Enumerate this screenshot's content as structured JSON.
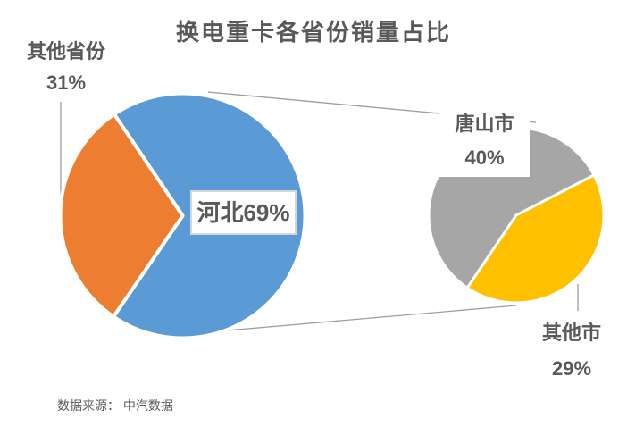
{
  "title": "换电重卡各省份销量占比",
  "source": "数据来源： 中汽数据",
  "colors": {
    "hebei_blue": "#5B9BD5",
    "other_provinces_orange": "#ED7D31",
    "tangshan_gray": "#A6A6A6",
    "other_cities_yellow": "#FFC000",
    "label_text": "#595959",
    "connector_line": "#9E9E9E",
    "callout_border": "#D6D6D6"
  },
  "labels": {
    "other_provinces_name": "其他省份",
    "other_provinces_pct": "31%",
    "hebei_callout": "河北69%",
    "tangshan_name": "唐山市",
    "tangshan_pct": "40%",
    "other_cities_name": "其他市",
    "other_cities_pct": "29%"
  },
  "chart_data": {
    "type": "pie",
    "subtype": "pie-of-pie",
    "title": "换电重卡各省份销量占比",
    "source": "数据来源： 中汽数据",
    "legend": "none",
    "main_pie": {
      "start_angle_clock_deg": 326,
      "slices": [
        {
          "id": "hebei",
          "label": "河北",
          "value": 69,
          "unit": "%",
          "color": "#5B9BD5"
        },
        {
          "id": "other-provinces",
          "label": "其他省份",
          "value": 31,
          "unit": "%",
          "color": "#ED7D31"
        }
      ]
    },
    "secondary_pie": {
      "note": "breakdown of 河北 69% slice",
      "start_angle_clock_deg": 214,
      "slices": [
        {
          "id": "tangshan",
          "label": "唐山市",
          "value": 40,
          "unit": "%",
          "color": "#A6A6A6"
        },
        {
          "id": "other-cities",
          "label": "其他市",
          "value": 29,
          "unit": "%",
          "color": "#FFC000"
        }
      ]
    }
  }
}
